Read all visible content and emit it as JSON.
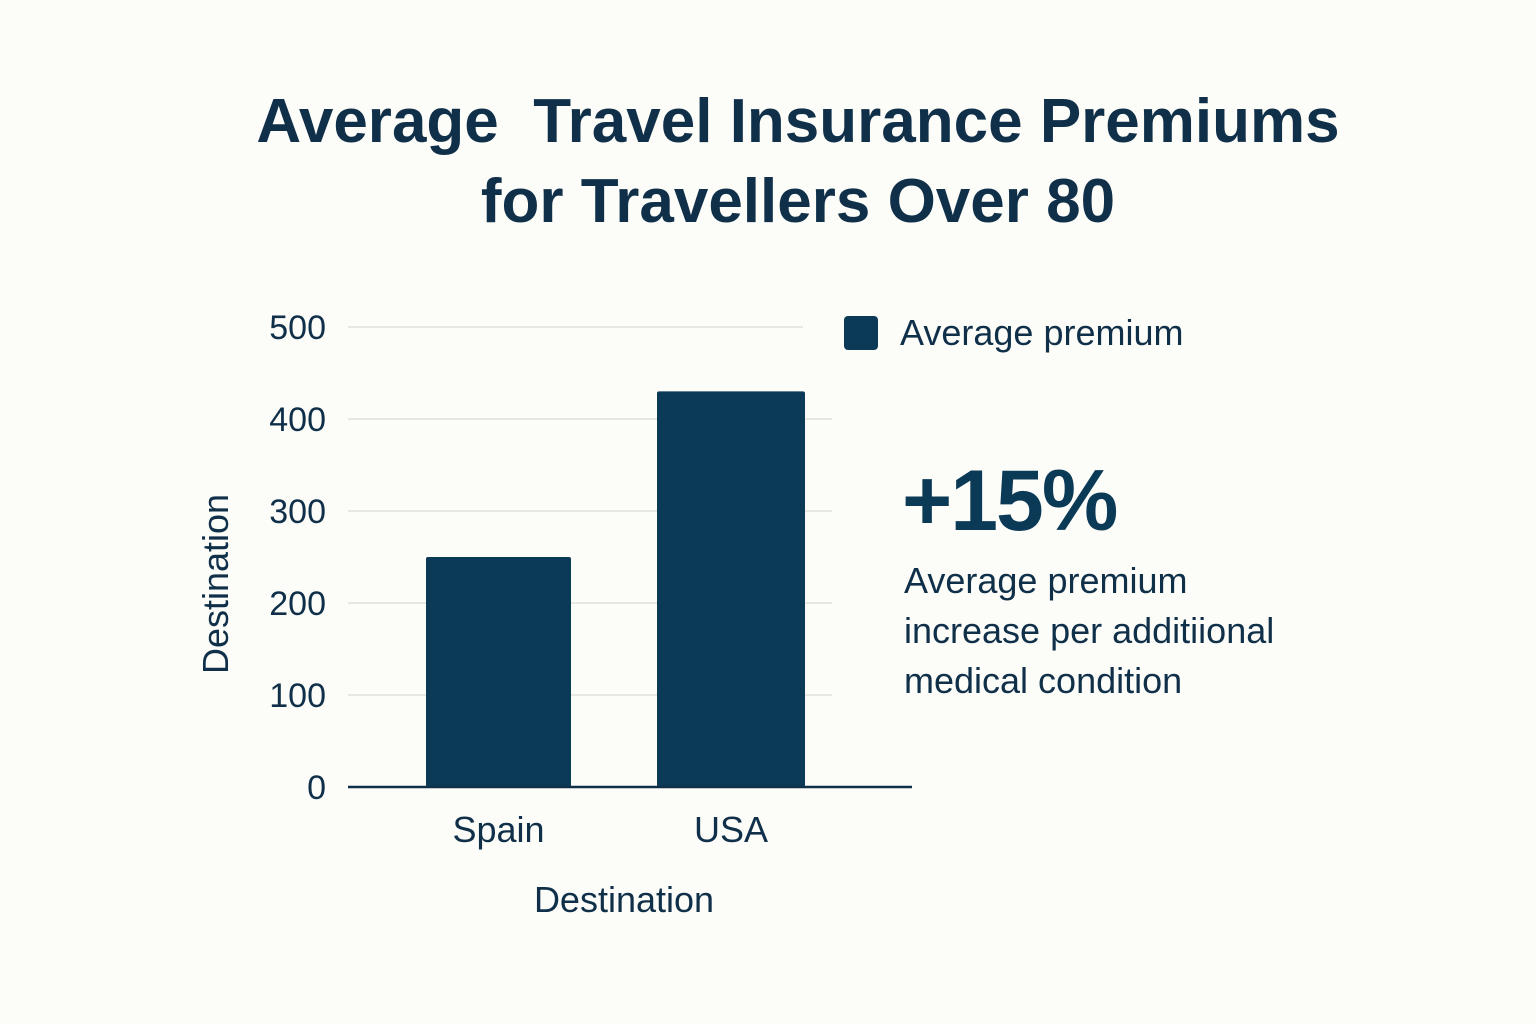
{
  "chart_data": {
    "type": "bar",
    "title": [
      "Average  Travel Insurance Premiums",
      "for Travellers Over 80"
    ],
    "categories": [
      "Spain",
      "USA"
    ],
    "series": [
      {
        "name": "Average premium",
        "values": [
          250,
          430
        ]
      }
    ],
    "xlabel": "Destination",
    "ylabel": "Destination",
    "ylim": [
      0,
      500
    ],
    "yticks": [
      0,
      100,
      200,
      300,
      400,
      500
    ],
    "grid": true,
    "legend_position": "right",
    "colors": {
      "bar": "#0b3a57",
      "text": "#10304a",
      "grid": "#e2e2dc"
    }
  },
  "callout": {
    "value": "+15%",
    "lines": [
      "Average premium",
      "increase per additiional",
      "medical condition"
    ]
  }
}
